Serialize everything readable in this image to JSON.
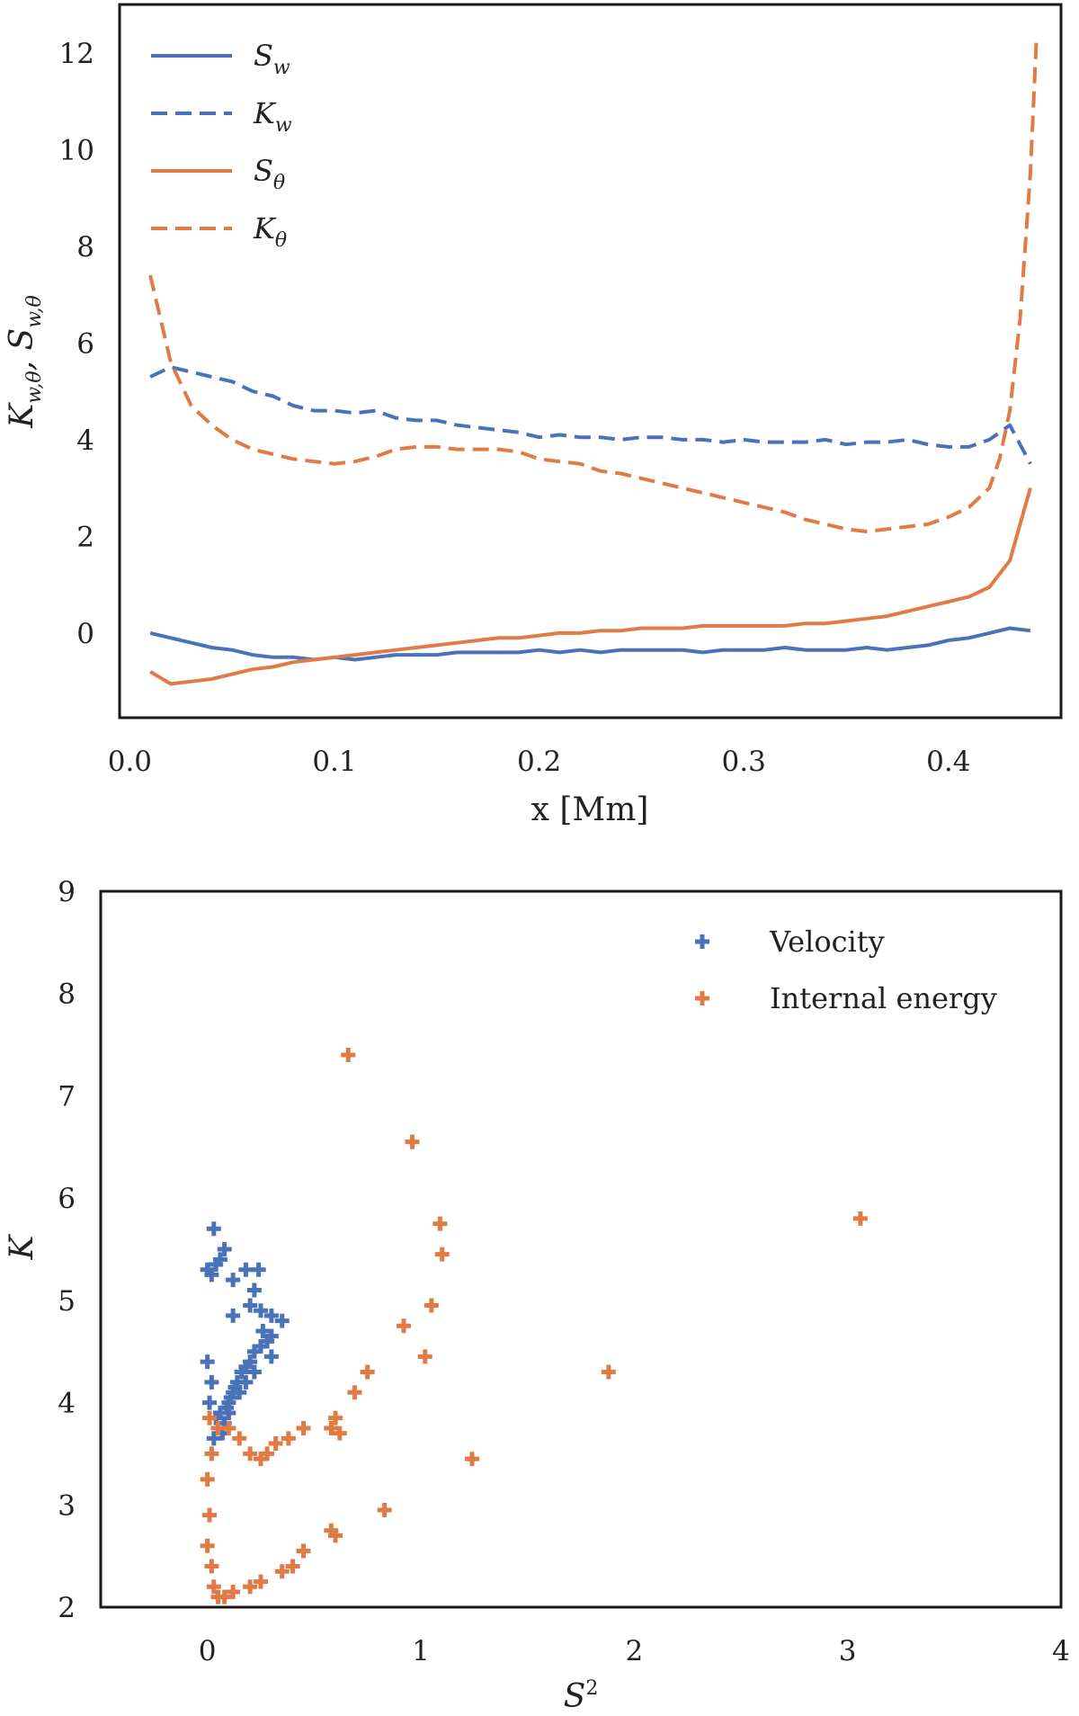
{
  "colors": {
    "blue": "#4a72b8",
    "orange": "#e07b45"
  },
  "chart_data": [
    {
      "type": "line",
      "title": "",
      "xlabel": "x [Mm]",
      "ylabel": "K_{w,θ}, S_{w,θ}",
      "xlim": [
        -0.005,
        0.455
      ],
      "ylim": [
        -1.75,
        13.0
      ],
      "xticks": [
        "0.0",
        "0.1",
        "0.2",
        "0.3",
        "0.4"
      ],
      "yticks": [
        "0",
        "2",
        "4",
        "6",
        "8",
        "10",
        "12"
      ],
      "legend_position": "upper-left",
      "series": [
        {
          "name": "S_w",
          "label_base": "S",
          "label_sub": "w",
          "style": "solid",
          "color": "blue",
          "x": [
            0.01,
            0.02,
            0.03,
            0.04,
            0.05,
            0.06,
            0.07,
            0.08,
            0.09,
            0.1,
            0.11,
            0.12,
            0.13,
            0.14,
            0.15,
            0.16,
            0.17,
            0.18,
            0.19,
            0.2,
            0.21,
            0.22,
            0.23,
            0.24,
            0.25,
            0.26,
            0.27,
            0.28,
            0.29,
            0.3,
            0.31,
            0.32,
            0.33,
            0.34,
            0.35,
            0.36,
            0.37,
            0.38,
            0.39,
            0.4,
            0.41,
            0.42,
            0.43,
            0.44
          ],
          "y": [
            0.0,
            -0.1,
            -0.2,
            -0.3,
            -0.35,
            -0.45,
            -0.5,
            -0.5,
            -0.55,
            -0.5,
            -0.55,
            -0.5,
            -0.45,
            -0.45,
            -0.45,
            -0.4,
            -0.4,
            -0.4,
            -0.4,
            -0.35,
            -0.4,
            -0.35,
            -0.4,
            -0.35,
            -0.35,
            -0.35,
            -0.35,
            -0.4,
            -0.35,
            -0.35,
            -0.35,
            -0.3,
            -0.35,
            -0.35,
            -0.35,
            -0.3,
            -0.35,
            -0.3,
            -0.25,
            -0.15,
            -0.1,
            0.0,
            0.1,
            0.05
          ]
        },
        {
          "name": "K_w",
          "label_base": "K",
          "label_sub": "w",
          "style": "dashed",
          "color": "blue",
          "x": [
            0.01,
            0.02,
            0.03,
            0.04,
            0.05,
            0.06,
            0.07,
            0.08,
            0.09,
            0.1,
            0.11,
            0.12,
            0.13,
            0.14,
            0.15,
            0.16,
            0.17,
            0.18,
            0.19,
            0.2,
            0.21,
            0.22,
            0.23,
            0.24,
            0.25,
            0.26,
            0.27,
            0.28,
            0.29,
            0.3,
            0.31,
            0.32,
            0.33,
            0.34,
            0.35,
            0.36,
            0.37,
            0.38,
            0.39,
            0.4,
            0.41,
            0.42,
            0.43,
            0.44
          ],
          "y": [
            5.3,
            5.5,
            5.4,
            5.3,
            5.2,
            5.0,
            4.9,
            4.7,
            4.6,
            4.6,
            4.55,
            4.6,
            4.45,
            4.4,
            4.4,
            4.3,
            4.25,
            4.2,
            4.15,
            4.05,
            4.1,
            4.05,
            4.05,
            4.0,
            4.05,
            4.05,
            4.0,
            4.0,
            3.95,
            4.0,
            3.95,
            3.95,
            3.95,
            4.0,
            3.9,
            3.95,
            3.95,
            4.0,
            3.9,
            3.85,
            3.85,
            4.0,
            4.3,
            3.5
          ]
        },
        {
          "name": "S_θ",
          "label_base": "S",
          "label_sub": "θ",
          "style": "solid",
          "color": "orange",
          "x": [
            0.01,
            0.02,
            0.03,
            0.04,
            0.05,
            0.06,
            0.07,
            0.08,
            0.09,
            0.1,
            0.11,
            0.12,
            0.13,
            0.14,
            0.15,
            0.16,
            0.17,
            0.18,
            0.19,
            0.2,
            0.21,
            0.22,
            0.23,
            0.24,
            0.25,
            0.26,
            0.27,
            0.28,
            0.29,
            0.3,
            0.31,
            0.32,
            0.33,
            0.34,
            0.35,
            0.36,
            0.37,
            0.38,
            0.39,
            0.4,
            0.41,
            0.42,
            0.43,
            0.44
          ],
          "y": [
            -0.8,
            -1.05,
            -1.0,
            -0.95,
            -0.85,
            -0.75,
            -0.7,
            -0.6,
            -0.55,
            -0.5,
            -0.45,
            -0.4,
            -0.35,
            -0.3,
            -0.25,
            -0.2,
            -0.15,
            -0.1,
            -0.1,
            -0.05,
            0.0,
            0.0,
            0.05,
            0.05,
            0.1,
            0.1,
            0.1,
            0.15,
            0.15,
            0.15,
            0.15,
            0.15,
            0.2,
            0.2,
            0.25,
            0.3,
            0.35,
            0.45,
            0.55,
            0.65,
            0.75,
            0.95,
            1.5,
            3.0
          ]
        },
        {
          "name": "K_θ",
          "label_base": "K",
          "label_sub": "θ",
          "style": "dashed",
          "color": "orange",
          "x": [
            0.01,
            0.015,
            0.02,
            0.03,
            0.04,
            0.05,
            0.06,
            0.07,
            0.08,
            0.09,
            0.1,
            0.11,
            0.12,
            0.13,
            0.14,
            0.15,
            0.16,
            0.17,
            0.18,
            0.19,
            0.2,
            0.21,
            0.22,
            0.23,
            0.24,
            0.25,
            0.26,
            0.27,
            0.28,
            0.29,
            0.3,
            0.31,
            0.32,
            0.33,
            0.34,
            0.35,
            0.36,
            0.37,
            0.38,
            0.39,
            0.4,
            0.41,
            0.42,
            0.425,
            0.43,
            0.435,
            0.44,
            0.443
          ],
          "y": [
            7.4,
            6.5,
            5.6,
            4.7,
            4.3,
            4.0,
            3.8,
            3.7,
            3.6,
            3.55,
            3.5,
            3.55,
            3.65,
            3.8,
            3.85,
            3.85,
            3.8,
            3.8,
            3.8,
            3.75,
            3.6,
            3.55,
            3.5,
            3.35,
            3.3,
            3.2,
            3.1,
            3.0,
            2.9,
            2.8,
            2.7,
            2.6,
            2.5,
            2.35,
            2.25,
            2.15,
            2.1,
            2.15,
            2.2,
            2.25,
            2.4,
            2.6,
            3.0,
            3.6,
            4.6,
            6.5,
            9.5,
            12.3
          ]
        }
      ]
    },
    {
      "type": "scatter",
      "title": "",
      "xlabel": "S²",
      "ylabel": "K",
      "xlim": [
        -0.5,
        4.0
      ],
      "ylim": [
        2.0,
        9.0
      ],
      "xticks": [
        "0",
        "1",
        "2",
        "3",
        "4"
      ],
      "yticks": [
        "2",
        "3",
        "4",
        "5",
        "6",
        "7",
        "8",
        "9"
      ],
      "legend_position": "upper-right",
      "series": [
        {
          "name": "Velocity",
          "color": "blue",
          "points": [
            [
              0.0,
              5.3
            ],
            [
              0.02,
              5.25
            ],
            [
              0.04,
              5.35
            ],
            [
              0.06,
              5.4
            ],
            [
              0.03,
              5.7
            ],
            [
              0.08,
              5.5
            ],
            [
              0.12,
              5.2
            ],
            [
              0.18,
              5.3
            ],
            [
              0.22,
              5.1
            ],
            [
              0.24,
              5.3
            ],
            [
              0.25,
              4.9
            ],
            [
              0.3,
              4.85
            ],
            [
              0.35,
              4.8
            ],
            [
              0.12,
              4.85
            ],
            [
              0.2,
              4.95
            ],
            [
              0.0,
              4.4
            ],
            [
              0.02,
              4.2
            ],
            [
              0.01,
              4.0
            ],
            [
              0.04,
              3.85
            ],
            [
              0.05,
              3.75
            ],
            [
              0.06,
              3.9
            ],
            [
              0.08,
              3.8
            ],
            [
              0.09,
              3.95
            ],
            [
              0.1,
              4.0
            ],
            [
              0.11,
              4.05
            ],
            [
              0.12,
              4.1
            ],
            [
              0.13,
              4.15
            ],
            [
              0.14,
              4.2
            ],
            [
              0.15,
              4.1
            ],
            [
              0.16,
              4.3
            ],
            [
              0.18,
              4.35
            ],
            [
              0.2,
              4.4
            ],
            [
              0.22,
              4.5
            ],
            [
              0.25,
              4.55
            ],
            [
              0.28,
              4.6
            ],
            [
              0.3,
              4.45
            ],
            [
              0.22,
              4.3
            ],
            [
              0.18,
              4.2
            ],
            [
              0.1,
              3.9
            ],
            [
              0.07,
              3.7
            ],
            [
              0.03,
              3.65
            ],
            [
              0.26,
              4.7
            ],
            [
              0.3,
              4.65
            ]
          ]
        },
        {
          "name": "Internal energy",
          "color": "orange",
          "points": [
            [
              0.66,
              7.4
            ],
            [
              0.96,
              6.55
            ],
            [
              3.06,
              5.8
            ],
            [
              1.09,
              5.75
            ],
            [
              1.1,
              5.45
            ],
            [
              1.05,
              4.95
            ],
            [
              0.92,
              4.75
            ],
            [
              1.02,
              4.45
            ],
            [
              0.75,
              4.3
            ],
            [
              0.69,
              4.1
            ],
            [
              1.88,
              4.3
            ],
            [
              1.24,
              3.45
            ],
            [
              0.83,
              2.95
            ],
            [
              0.58,
              2.75
            ],
            [
              0.6,
              2.7
            ],
            [
              0.45,
              2.55
            ],
            [
              0.4,
              2.4
            ],
            [
              0.35,
              2.35
            ],
            [
              0.25,
              2.25
            ],
            [
              0.2,
              2.2
            ],
            [
              0.12,
              2.15
            ],
            [
              0.08,
              2.1
            ],
            [
              0.05,
              2.1
            ],
            [
              0.03,
              2.2
            ],
            [
              0.02,
              2.4
            ],
            [
              0.0,
              2.6
            ],
            [
              0.01,
              2.9
            ],
            [
              0.0,
              3.25
            ],
            [
              0.02,
              3.5
            ],
            [
              0.01,
              3.85
            ],
            [
              0.05,
              3.75
            ],
            [
              0.1,
              3.75
            ],
            [
              0.15,
              3.65
            ],
            [
              0.2,
              3.5
            ],
            [
              0.25,
              3.45
            ],
            [
              0.28,
              3.5
            ],
            [
              0.32,
              3.6
            ],
            [
              0.38,
              3.65
            ],
            [
              0.45,
              3.75
            ],
            [
              0.58,
              3.75
            ],
            [
              0.6,
              3.85
            ],
            [
              0.62,
              3.7
            ]
          ]
        }
      ]
    }
  ]
}
